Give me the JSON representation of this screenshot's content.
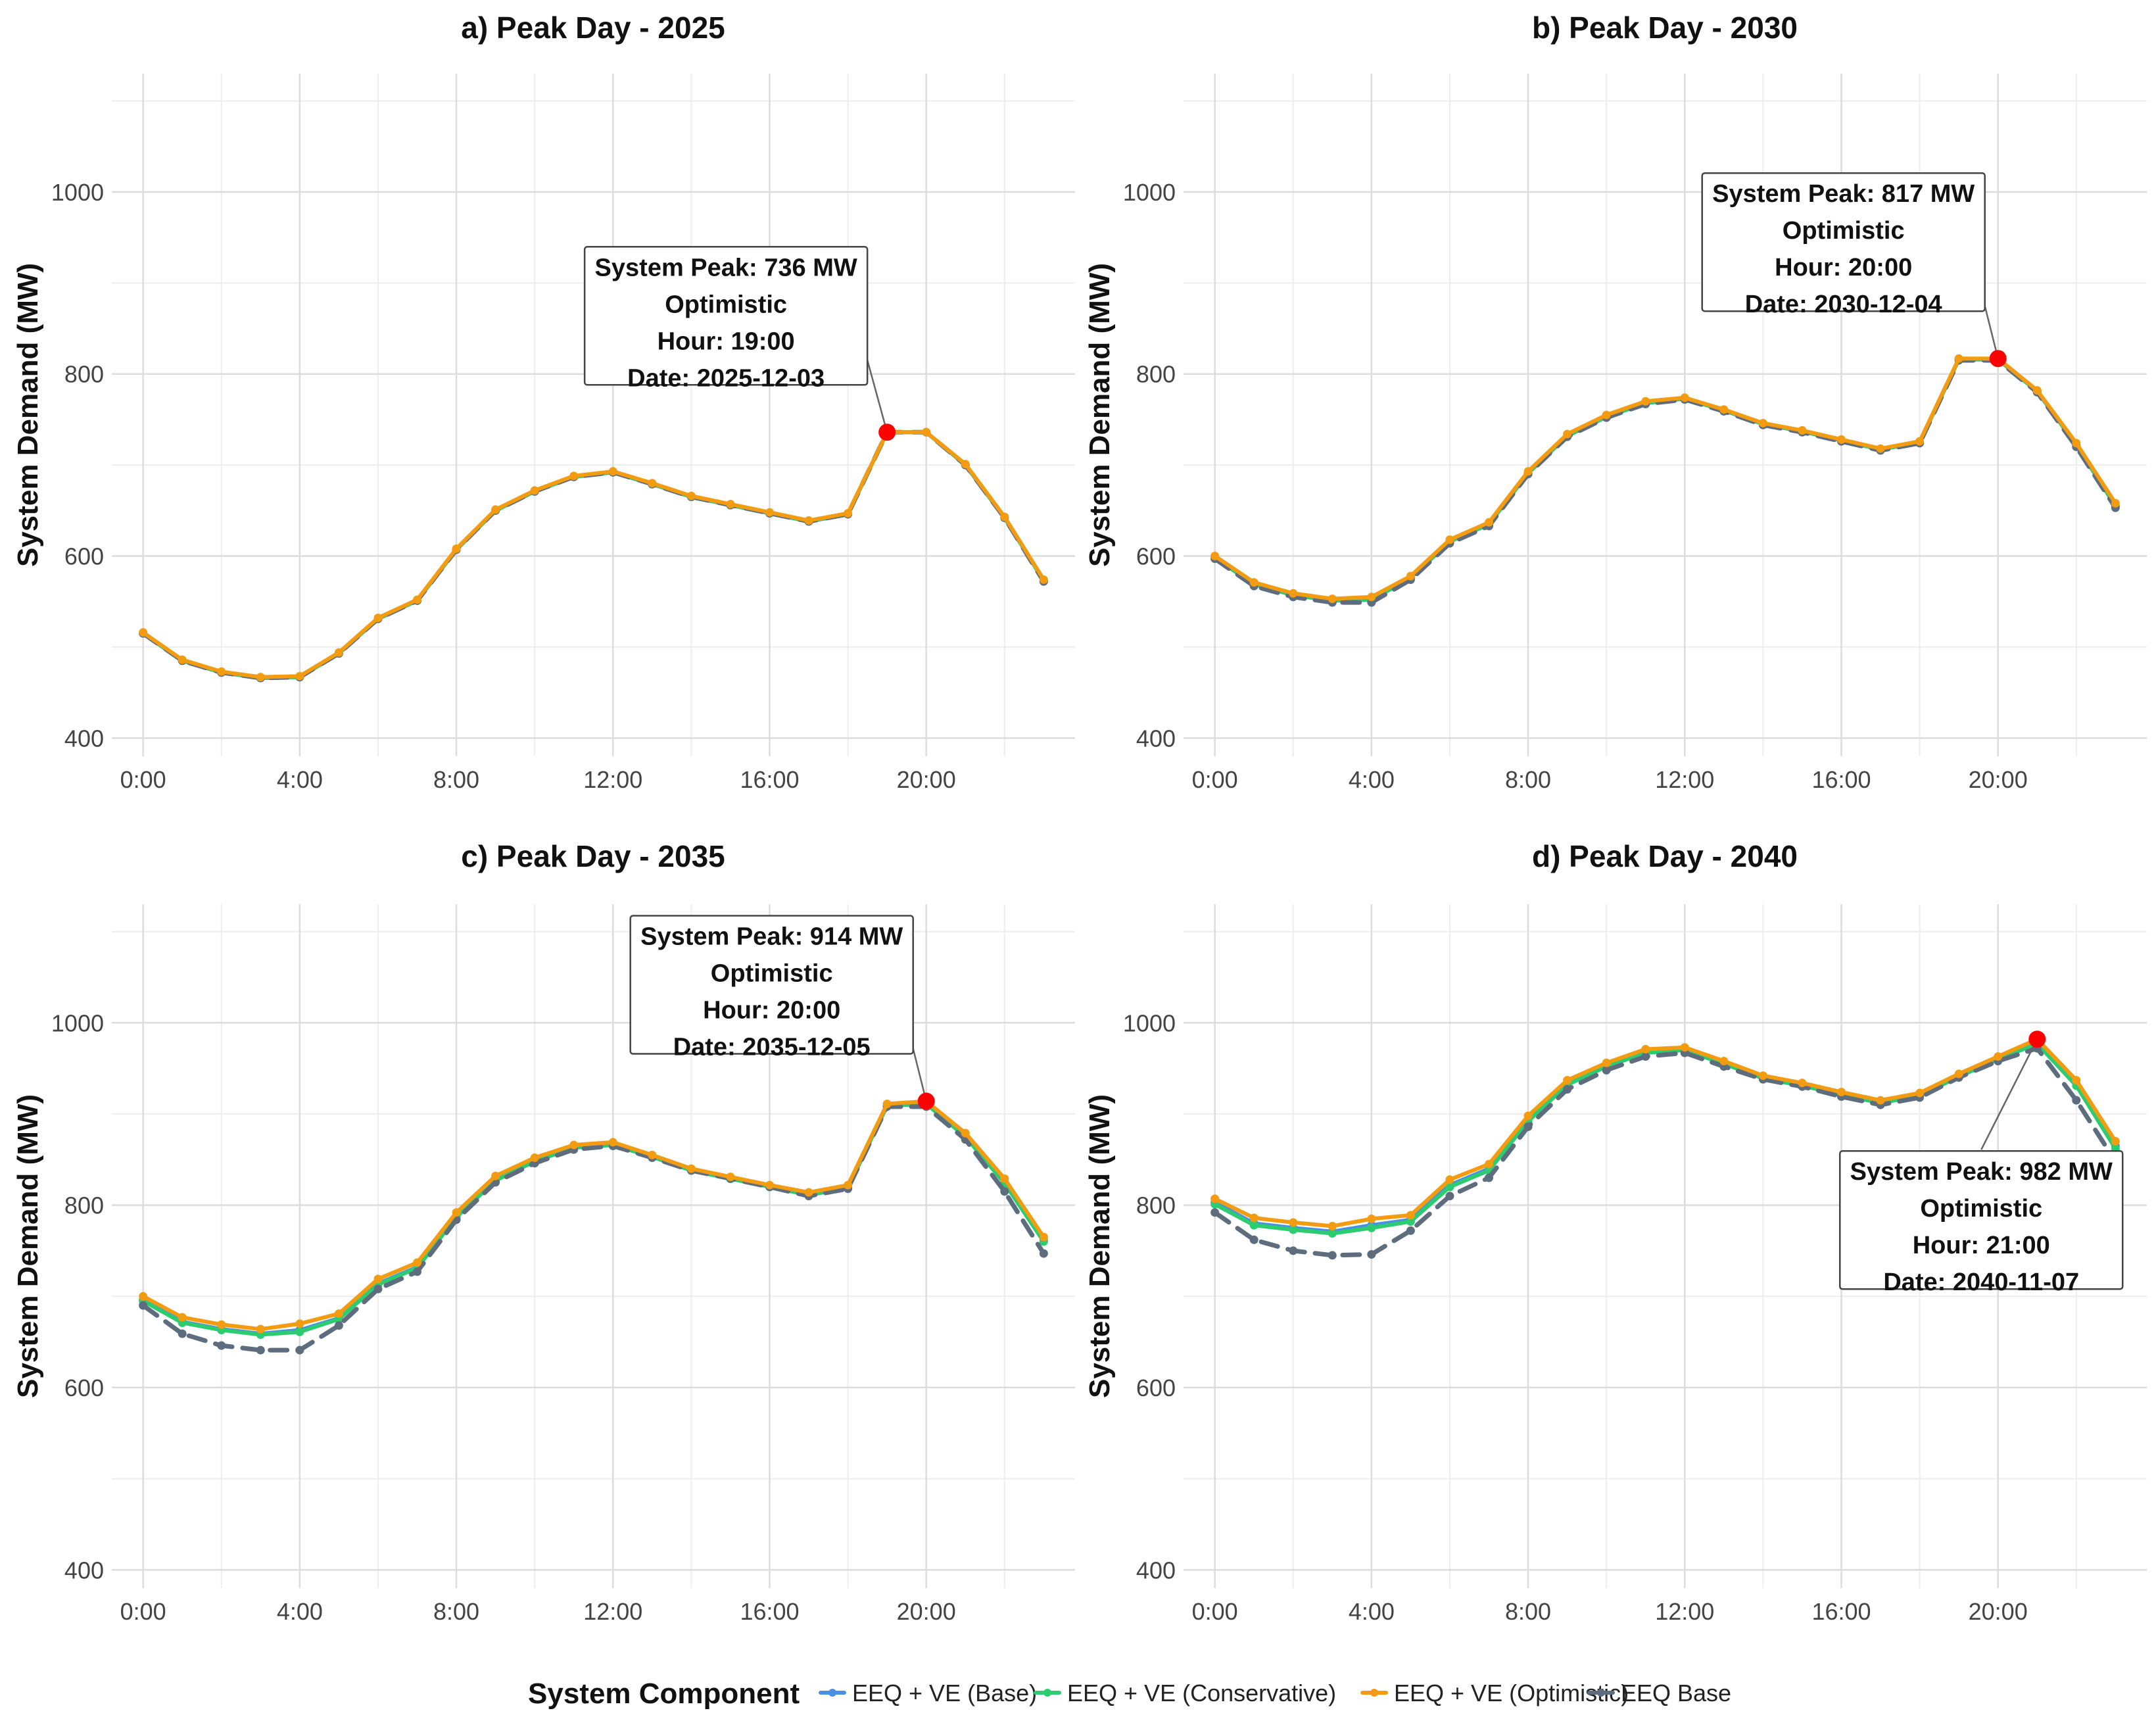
{
  "chart_data": [
    {
      "type": "line",
      "title": "a) Peak Day - 2025",
      "xlabel": "",
      "ylabel": "System Demand (MW)",
      "ylim": [
        380,
        1130
      ],
      "xlim": [
        -0.8,
        23.8
      ],
      "yticks": [
        400,
        600,
        800,
        1000
      ],
      "xticks": [
        {
          "value": 0,
          "label": "0:00"
        },
        {
          "value": 4,
          "label": "4:00"
        },
        {
          "value": 8,
          "label": "8:00"
        },
        {
          "value": 12,
          "label": "12:00"
        },
        {
          "value": 16,
          "label": "16:00"
        },
        {
          "value": 20,
          "label": "20:00"
        }
      ],
      "x": [
        0,
        1,
        2,
        3,
        4,
        5,
        6,
        7,
        8,
        9,
        10,
        11,
        12,
        13,
        14,
        15,
        16,
        17,
        18,
        19,
        20,
        21,
        22,
        23
      ],
      "series": [
        {
          "name": "EEQ Base",
          "values": [
            515,
            485,
            472,
            466,
            467,
            493,
            531,
            551,
            607,
            650,
            671,
            687,
            692,
            679,
            665,
            656,
            647,
            638,
            646,
            736,
            736,
            700,
            642,
            572
          ]
        },
        {
          "name": "EEQ + VE (Base)",
          "values": [
            515,
            485,
            472,
            466,
            467,
            493,
            531,
            551,
            607,
            650,
            671,
            687,
            692,
            679,
            665,
            656,
            647,
            638,
            646,
            736,
            736,
            700,
            642,
            573
          ]
        },
        {
          "name": "EEQ + VE (Conservative)",
          "values": [
            515,
            485,
            472,
            466,
            467,
            493,
            531,
            551,
            607,
            650,
            671,
            687,
            692,
            679,
            665,
            656,
            647,
            638,
            646,
            736,
            736,
            700,
            642,
            573
          ]
        },
        {
          "name": "EEQ + VE (Optimistic)",
          "values": [
            516,
            486,
            473,
            467,
            468,
            494,
            532,
            552,
            608,
            651,
            672,
            688,
            693,
            680,
            666,
            657,
            648,
            639,
            647,
            736,
            736,
            701,
            643,
            574
          ]
        }
      ],
      "peak": {
        "hour": 19,
        "value": 736
      },
      "annotation": {
        "lines": [
          "System Peak: 736 MW",
          "Optimistic",
          "Hour: 19:00",
          "Date: 2025-12-03"
        ],
        "position": "upper-middle"
      }
    },
    {
      "type": "line",
      "title": "b) Peak Day - 2030",
      "xlabel": "",
      "ylabel": "System Demand (MW)",
      "ylim": [
        380,
        1130
      ],
      "xlim": [
        -0.8,
        23.8
      ],
      "yticks": [
        400,
        600,
        800,
        1000
      ],
      "xticks": [
        {
          "value": 0,
          "label": "0:00"
        },
        {
          "value": 4,
          "label": "4:00"
        },
        {
          "value": 8,
          "label": "8:00"
        },
        {
          "value": 12,
          "label": "12:00"
        },
        {
          "value": 16,
          "label": "16:00"
        },
        {
          "value": 20,
          "label": "20:00"
        }
      ],
      "x": [
        0,
        1,
        2,
        3,
        4,
        5,
        6,
        7,
        8,
        9,
        10,
        11,
        12,
        13,
        14,
        15,
        16,
        17,
        18,
        19,
        20,
        21,
        22,
        23
      ],
      "series": [
        {
          "name": "EEQ Base",
          "values": [
            597,
            567,
            555,
            549,
            549,
            574,
            614,
            633,
            690,
            731,
            752,
            767,
            772,
            759,
            744,
            736,
            726,
            716,
            724,
            815,
            815,
            780,
            720,
            653
          ]
        },
        {
          "name": "EEQ + VE (Base)",
          "values": [
            598,
            569,
            557,
            551,
            552,
            576,
            616,
            635,
            691,
            732,
            753,
            768,
            773,
            760,
            745,
            737,
            727,
            717,
            725,
            816,
            816,
            781,
            722,
            655
          ]
        },
        {
          "name": "EEQ + VE (Conservative)",
          "values": [
            598,
            569,
            557,
            551,
            552,
            576,
            616,
            635,
            691,
            732,
            753,
            768,
            773,
            760,
            745,
            737,
            727,
            717,
            725,
            816,
            816,
            781,
            722,
            655
          ]
        },
        {
          "name": "EEQ + VE (Optimistic)",
          "values": [
            600,
            571,
            559,
            553,
            555,
            578,
            618,
            637,
            693,
            734,
            755,
            770,
            774,
            761,
            746,
            738,
            728,
            718,
            726,
            817,
            817,
            782,
            724,
            658
          ]
        }
      ],
      "peak": {
        "hour": 20,
        "value": 817
      },
      "annotation": {
        "lines": [
          "System Peak: 817 MW",
          "Optimistic",
          "Hour: 20:00",
          "Date: 2030-12-04"
        ],
        "position": "upper-right"
      }
    },
    {
      "type": "line",
      "title": "c) Peak Day - 2035",
      "xlabel": "",
      "ylabel": "System Demand (MW)",
      "ylim": [
        380,
        1130
      ],
      "xlim": [
        -0.8,
        23.8
      ],
      "yticks": [
        400,
        600,
        800,
        1000
      ],
      "xticks": [
        {
          "value": 0,
          "label": "0:00"
        },
        {
          "value": 4,
          "label": "4:00"
        },
        {
          "value": 8,
          "label": "8:00"
        },
        {
          "value": 12,
          "label": "12:00"
        },
        {
          "value": 16,
          "label": "16:00"
        },
        {
          "value": 20,
          "label": "20:00"
        }
      ],
      "x": [
        0,
        1,
        2,
        3,
        4,
        5,
        6,
        7,
        8,
        9,
        10,
        11,
        12,
        13,
        14,
        15,
        16,
        17,
        18,
        19,
        20,
        21,
        22,
        23
      ],
      "series": [
        {
          "name": "EEQ Base",
          "values": [
            690,
            659,
            646,
            641,
            641,
            668,
            708,
            727,
            784,
            825,
            846,
            861,
            865,
            852,
            838,
            829,
            820,
            810,
            818,
            908,
            908,
            872,
            815,
            747
          ]
        },
        {
          "name": "EEQ + VE (Base)",
          "values": [
            696,
            672,
            664,
            659,
            663,
            676,
            714,
            732,
            788,
            828,
            849,
            864,
            867,
            854,
            839,
            830,
            821,
            812,
            820,
            910,
            912,
            876,
            825,
            762
          ]
        },
        {
          "name": "EEQ + VE (Conservative)",
          "values": [
            695,
            671,
            663,
            658,
            661,
            675,
            713,
            731,
            787,
            827,
            848,
            863,
            866,
            853,
            838,
            829,
            820,
            811,
            819,
            909,
            911,
            875,
            824,
            760
          ]
        },
        {
          "name": "EEQ + VE (Optimistic)",
          "values": [
            700,
            677,
            669,
            664,
            670,
            681,
            719,
            737,
            792,
            832,
            852,
            866,
            869,
            855,
            840,
            831,
            822,
            814,
            822,
            911,
            914,
            879,
            829,
            765
          ]
        }
      ],
      "peak": {
        "hour": 20,
        "value": 914
      },
      "annotation": {
        "lines": [
          "System Peak: 914 MW",
          "Optimistic",
          "Hour: 20:00",
          "Date: 2035-12-05"
        ],
        "position": "upper-right"
      }
    },
    {
      "type": "line",
      "title": "d) Peak Day - 2040",
      "xlabel": "",
      "ylabel": "System Demand (MW)",
      "ylim": [
        380,
        1130
      ],
      "xlim": [
        -0.8,
        23.8
      ],
      "yticks": [
        400,
        600,
        800,
        1000
      ],
      "xticks": [
        {
          "value": 0,
          "label": "0:00"
        },
        {
          "value": 4,
          "label": "4:00"
        },
        {
          "value": 8,
          "label": "8:00"
        },
        {
          "value": 12,
          "label": "12:00"
        },
        {
          "value": 16,
          "label": "16:00"
        },
        {
          "value": 20,
          "label": "20:00"
        }
      ],
      "x": [
        0,
        1,
        2,
        3,
        4,
        5,
        6,
        7,
        8,
        9,
        10,
        11,
        12,
        13,
        14,
        15,
        16,
        17,
        18,
        19,
        20,
        21,
        22,
        23
      ],
      "series": [
        {
          "name": "EEQ Base",
          "values": [
            792,
            762,
            750,
            745,
            746,
            772,
            810,
            830,
            886,
            927,
            948,
            963,
            967,
            952,
            938,
            930,
            919,
            910,
            918,
            940,
            958,
            972,
            915,
            848
          ]
        },
        {
          "name": "EEQ + VE (Base)",
          "values": [
            803,
            780,
            775,
            771,
            778,
            784,
            822,
            840,
            894,
            933,
            953,
            968,
            971,
            956,
            940,
            932,
            922,
            913,
            921,
            942,
            961,
            978,
            933,
            865
          ]
        },
        {
          "name": "EEQ + VE (Conservative)",
          "values": [
            801,
            778,
            773,
            769,
            775,
            782,
            820,
            838,
            892,
            932,
            952,
            967,
            970,
            955,
            939,
            931,
            921,
            912,
            920,
            941,
            960,
            977,
            931,
            862
          ]
        },
        {
          "name": "EEQ + VE (Optimistic)",
          "values": [
            807,
            786,
            781,
            777,
            785,
            789,
            828,
            845,
            898,
            937,
            956,
            971,
            973,
            958,
            942,
            934,
            924,
            915,
            923,
            944,
            963,
            982,
            937,
            870
          ]
        }
      ],
      "peak": {
        "hour": 21,
        "value": 982
      },
      "annotation": {
        "lines": [
          "System Peak: 982 MW",
          "Optimistic",
          "Hour: 21:00",
          "Date: 2040-11-07"
        ],
        "position": "lower-right"
      }
    }
  ],
  "legend": {
    "title": "System Component",
    "position": "bottom",
    "items": [
      {
        "label": "EEQ + VE (Base)",
        "color": "#4a90e2",
        "dashed": false
      },
      {
        "label": "EEQ + VE (Conservative)",
        "color": "#2ecc71",
        "dashed": false
      },
      {
        "label": "EEQ + VE (Optimistic)",
        "color": "#f39c12",
        "dashed": false
      },
      {
        "label": "EEQ Base",
        "color": "#5d6d7e",
        "dashed": true
      }
    ]
  },
  "colors": {
    "EEQ Base": "#5d6d7e",
    "EEQ + VE (Base)": "#4a90e2",
    "EEQ + VE (Conservative)": "#2ecc71",
    "EEQ + VE (Optimistic)": "#f39c12",
    "peak": "#ff0000",
    "grid_major": "#dcdcdc",
    "grid_minor": "#ededed"
  }
}
